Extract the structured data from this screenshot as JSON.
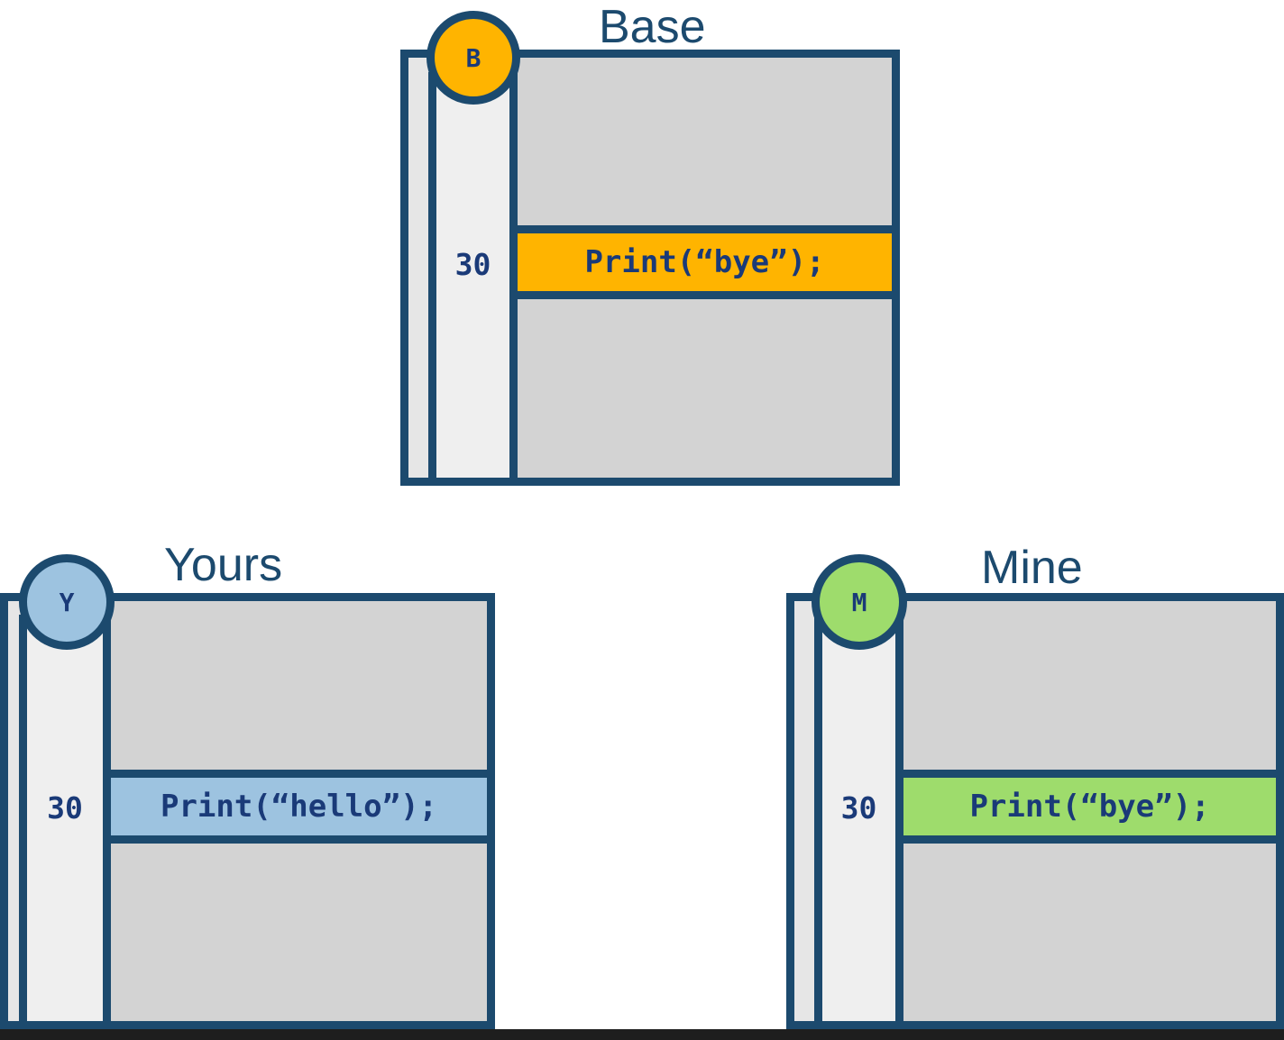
{
  "colors": {
    "outline": "#1c4a6e",
    "panel": "#d3d3d3",
    "gutter": "#efefef",
    "base": "#ffb400",
    "yours": "#9dc3e0",
    "mine": "#9edc6c"
  },
  "base": {
    "title": "Base",
    "badge": "B",
    "line_number": "30",
    "code": "Print(“bye”);"
  },
  "yours": {
    "title": "Yours",
    "badge": "Y",
    "line_number": "30",
    "code": "Print(“hello”);"
  },
  "mine": {
    "title": "Mine",
    "badge": "M",
    "line_number": "30",
    "code": "Print(“bye”);"
  }
}
